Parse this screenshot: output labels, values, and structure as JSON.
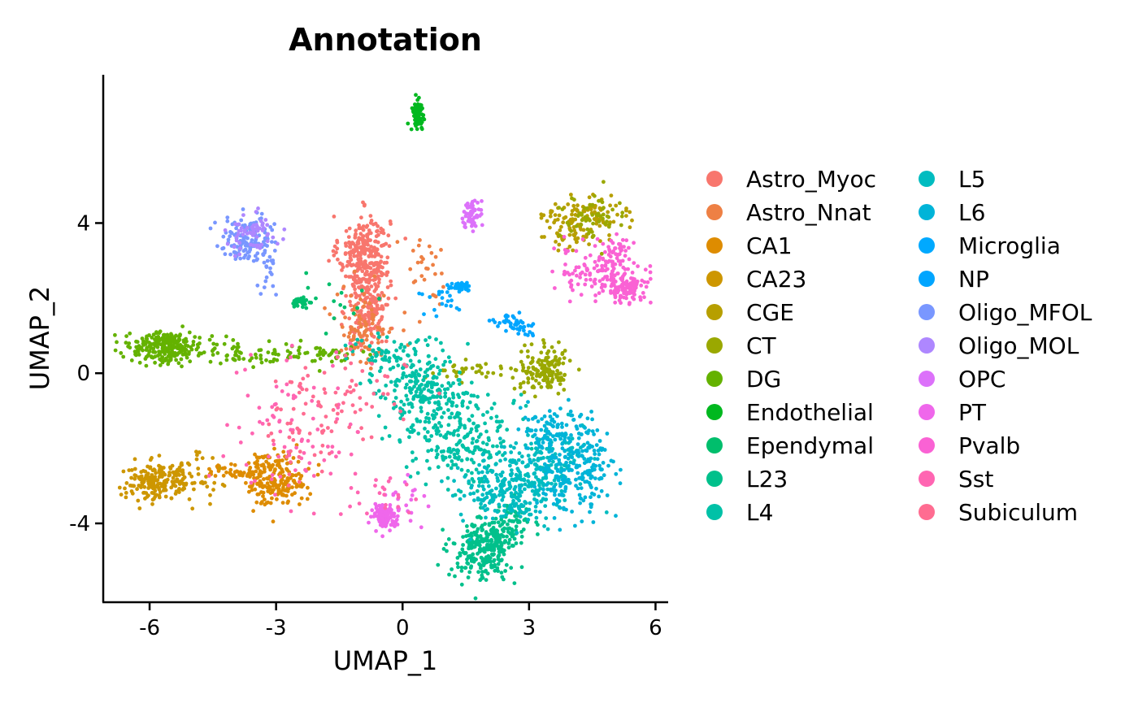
{
  "chart_data": {
    "type": "scatter",
    "title": "Annotation",
    "xlabel": "UMAP_1",
    "ylabel": "UMAP_2",
    "xlim": [
      -7.1,
      6.3
    ],
    "ylim": [
      -6.1,
      7.95
    ],
    "x_ticks": [
      -6,
      -3,
      0,
      3,
      6
    ],
    "x_tick_labels": [
      "-6",
      "-3",
      "0",
      "3",
      "6"
    ],
    "y_ticks": [
      -4,
      0,
      4
    ],
    "y_tick_labels": [
      "-4",
      "0",
      "4"
    ],
    "grid": false,
    "legend_position": "right",
    "legend_columns": 2,
    "series": [
      {
        "name": "Astro_Myoc",
        "color": "#F8766D",
        "clusters": [
          {
            "x": -0.9,
            "y": 3.2,
            "sx": 0.3,
            "sy": 0.5,
            "n": 260
          },
          {
            "x": -0.8,
            "y": 1.8,
            "sx": 0.25,
            "sy": 0.6,
            "n": 180
          }
        ]
      },
      {
        "name": "Astro_Nnat",
        "color": "#EE8044",
        "clusters": [
          {
            "x": -0.9,
            "y": 1.2,
            "sx": 0.35,
            "sy": 0.5,
            "n": 90
          },
          {
            "x": 0.5,
            "y": 2.6,
            "sx": 0.4,
            "sy": 0.6,
            "n": 30
          }
        ]
      },
      {
        "name": "CA1",
        "color": "#DE8C00",
        "clusters": [
          {
            "x": -3.0,
            "y": -2.8,
            "sx": 0.35,
            "sy": 0.35,
            "n": 200
          },
          {
            "x": -4.0,
            "y": -2.6,
            "sx": 0.4,
            "sy": 0.1,
            "n": 40
          }
        ]
      },
      {
        "name": "CA23",
        "color": "#CD9600",
        "clusters": [
          {
            "x": -5.9,
            "y": -2.9,
            "sx": 0.35,
            "sy": 0.25,
            "n": 170
          },
          {
            "x": -5.1,
            "y": -2.8,
            "sx": 0.3,
            "sy": 0.3,
            "n": 60
          }
        ]
      },
      {
        "name": "CGE",
        "color": "#B79F00",
        "clusters": [
          {
            "x": 4.4,
            "y": 4.2,
            "sx": 0.5,
            "sy": 0.25,
            "n": 90
          },
          {
            "x": 3.9,
            "y": 3.7,
            "sx": 0.25,
            "sy": 0.3,
            "n": 40
          }
        ]
      },
      {
        "name": "CT",
        "color": "#9AA800",
        "clusters": [
          {
            "x": 3.4,
            "y": 0.1,
            "sx": 0.3,
            "sy": 0.3,
            "n": 150
          },
          {
            "x": 1.7,
            "y": 0.05,
            "sx": 0.6,
            "sy": 0.1,
            "n": 40
          },
          {
            "x": 4.5,
            "y": 4.1,
            "sx": 0.4,
            "sy": 0.3,
            "n": 60
          }
        ]
      },
      {
        "name": "DG",
        "color": "#64B200",
        "clusters": [
          {
            "x": -5.6,
            "y": 0.7,
            "sx": 0.45,
            "sy": 0.2,
            "n": 260
          },
          {
            "x": -3.6,
            "y": 0.5,
            "sx": 0.7,
            "sy": 0.15,
            "n": 60
          },
          {
            "x": -1.8,
            "y": 0.5,
            "sx": 0.5,
            "sy": 0.2,
            "n": 40
          }
        ]
      },
      {
        "name": "Endothelial",
        "color": "#00B81F",
        "clusters": [
          {
            "x": 0.35,
            "y": 6.9,
            "sx": 0.07,
            "sy": 0.25,
            "n": 70
          }
        ]
      },
      {
        "name": "Ependymal",
        "color": "#00BE6C",
        "clusters": [
          {
            "x": -2.4,
            "y": 1.85,
            "sx": 0.12,
            "sy": 0.08,
            "n": 25
          },
          {
            "x": -1.5,
            "y": 1.7,
            "sx": 0.6,
            "sy": 0.6,
            "n": 15
          }
        ]
      },
      {
        "name": "L23",
        "color": "#00C08B",
        "clusters": [
          {
            "x": 1.9,
            "y": -4.7,
            "sx": 0.35,
            "sy": 0.4,
            "n": 260
          },
          {
            "x": 2.5,
            "y": -4.1,
            "sx": 0.3,
            "sy": 0.3,
            "n": 80
          }
        ]
      },
      {
        "name": "L4",
        "color": "#00C1A7",
        "clusters": [
          {
            "x": 0.6,
            "y": -0.6,
            "sx": 0.5,
            "sy": 0.5,
            "n": 220
          },
          {
            "x": 1.5,
            "y": -1.8,
            "sx": 0.6,
            "sy": 0.6,
            "n": 200
          },
          {
            "x": -0.3,
            "y": 0.5,
            "sx": 0.5,
            "sy": 0.4,
            "n": 80
          }
        ]
      },
      {
        "name": "L5",
        "color": "#00BCC0",
        "clusters": [
          {
            "x": 2.6,
            "y": -3.1,
            "sx": 0.6,
            "sy": 0.45,
            "n": 250
          },
          {
            "x": 3.3,
            "y": -2.3,
            "sx": 0.5,
            "sy": 0.4,
            "n": 120
          }
        ]
      },
      {
        "name": "L6",
        "color": "#00B4D8",
        "clusters": [
          {
            "x": 4.1,
            "y": -2.5,
            "sx": 0.45,
            "sy": 0.6,
            "n": 230
          },
          {
            "x": 3.5,
            "y": -1.5,
            "sx": 0.4,
            "sy": 0.3,
            "n": 70
          }
        ]
      },
      {
        "name": "Microglia",
        "color": "#00A9FF",
        "clusters": [
          {
            "x": 1.4,
            "y": 2.3,
            "sx": 0.12,
            "sy": 0.06,
            "n": 40
          },
          {
            "x": 0.9,
            "y": 2.0,
            "sx": 0.3,
            "sy": 0.2,
            "n": 20
          }
        ]
      },
      {
        "name": "NP",
        "color": "#00A5FF",
        "clusters": [
          {
            "x": 2.7,
            "y": 1.3,
            "sx": 0.3,
            "sy": 0.12,
            "n": 45
          }
        ]
      },
      {
        "name": "Oligo_MFOL",
        "color": "#7997FF",
        "clusters": [
          {
            "x": -3.7,
            "y": 3.6,
            "sx": 0.3,
            "sy": 0.3,
            "n": 140
          },
          {
            "x": -3.1,
            "y": 2.7,
            "sx": 0.15,
            "sy": 0.3,
            "n": 20
          }
        ]
      },
      {
        "name": "Oligo_MOL",
        "color": "#AE87FF",
        "clusters": [
          {
            "x": -3.6,
            "y": 3.8,
            "sx": 0.3,
            "sy": 0.25,
            "n": 60
          }
        ]
      },
      {
        "name": "OPC",
        "color": "#DC71FA",
        "clusters": [
          {
            "x": 1.65,
            "y": 4.25,
            "sx": 0.1,
            "sy": 0.2,
            "n": 55
          }
        ]
      },
      {
        "name": "PT",
        "color": "#EF67EB",
        "clusters": [
          {
            "x": -0.4,
            "y": -3.8,
            "sx": 0.15,
            "sy": 0.15,
            "n": 110
          },
          {
            "x": 0.0,
            "y": -3.6,
            "sx": 0.3,
            "sy": 0.3,
            "n": 25
          }
        ]
      },
      {
        "name": "Pvalb",
        "color": "#FA62D4",
        "clusters": [
          {
            "x": 5.3,
            "y": 2.3,
            "sx": 0.25,
            "sy": 0.2,
            "n": 110
          },
          {
            "x": 4.6,
            "y": 2.7,
            "sx": 0.5,
            "sy": 0.4,
            "n": 110
          },
          {
            "x": 5.1,
            "y": 3.2,
            "sx": 0.2,
            "sy": 0.2,
            "n": 40
          }
        ]
      },
      {
        "name": "Sst",
        "color": "#FF65B2",
        "clusters": [
          {
            "x": -2.6,
            "y": -1.6,
            "sx": 0.9,
            "sy": 0.9,
            "n": 90
          },
          {
            "x": -0.4,
            "y": -3.3,
            "sx": 0.3,
            "sy": 0.3,
            "n": 20
          }
        ]
      },
      {
        "name": "Subiculum",
        "color": "#FF6C91",
        "clusters": [
          {
            "x": -1.6,
            "y": -0.6,
            "sx": 0.8,
            "sy": 0.6,
            "n": 70
          },
          {
            "x": -2.4,
            "y": -1.8,
            "sx": 0.4,
            "sy": 0.5,
            "n": 30
          }
        ]
      }
    ]
  }
}
